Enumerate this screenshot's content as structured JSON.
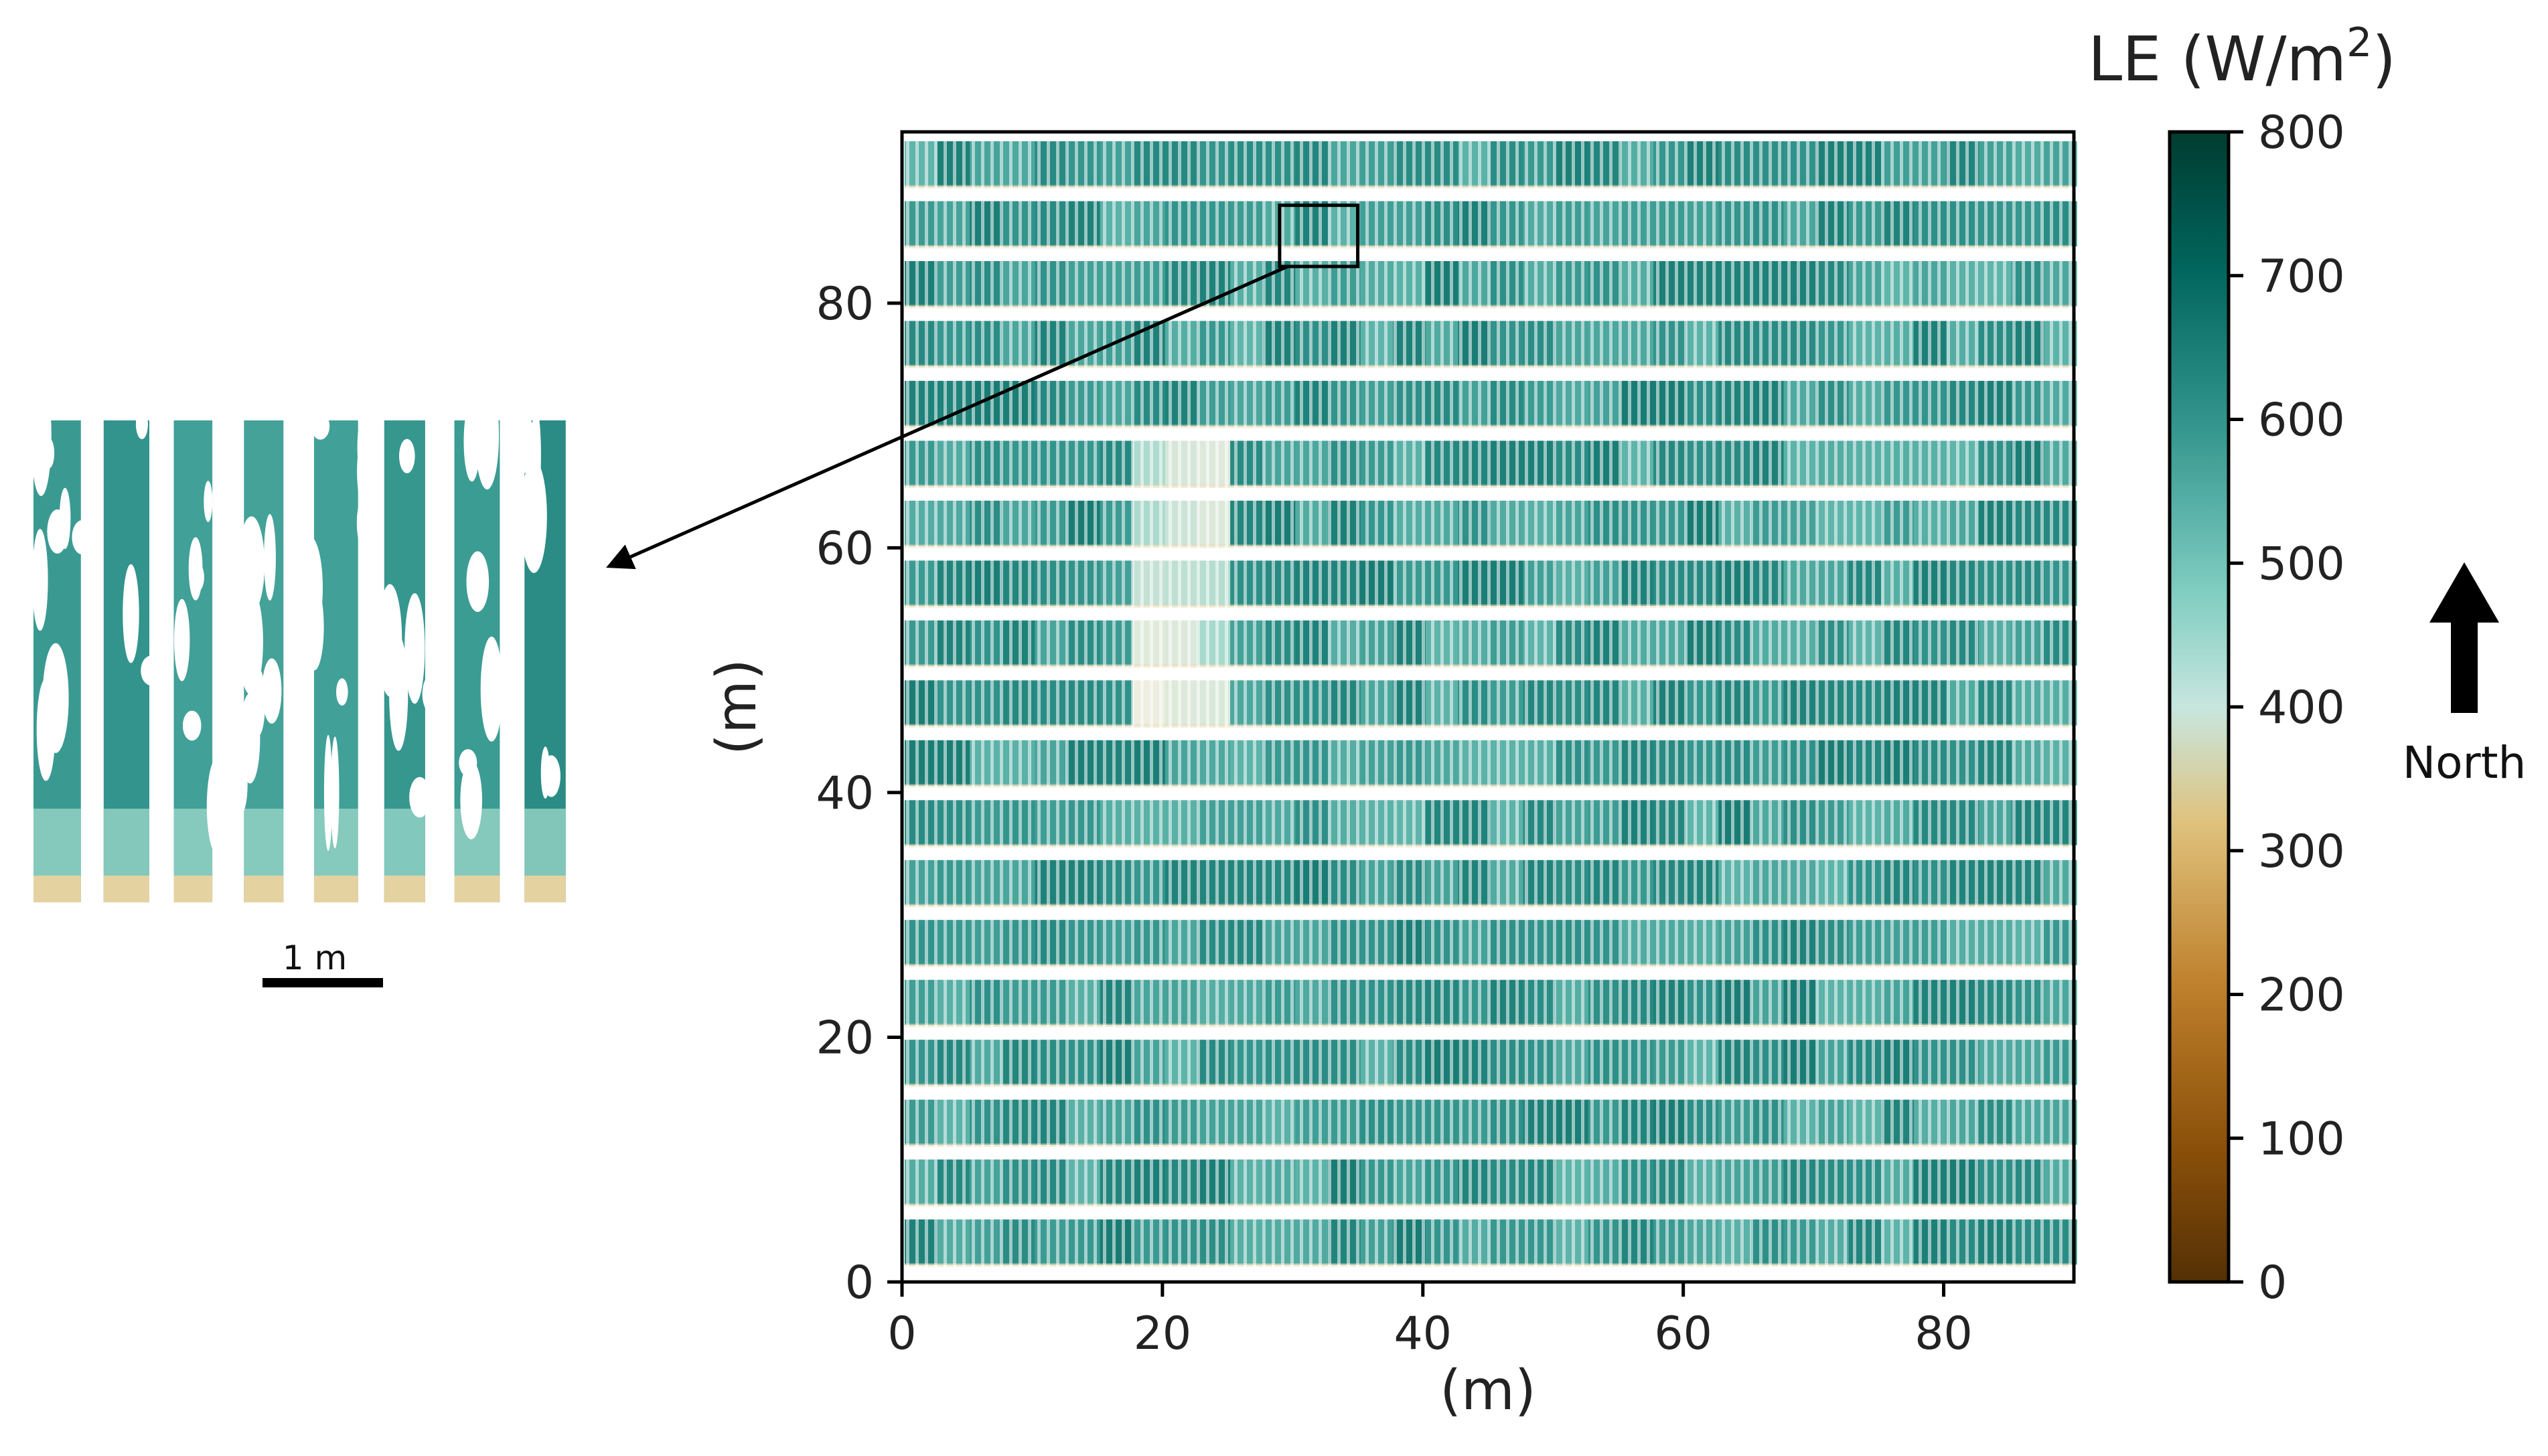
{
  "chart_data": {
    "type": "heatmap",
    "xlabel": "(m)",
    "ylabel": "(m)",
    "xlim": [
      0,
      90
    ],
    "ylim": [
      0,
      94
    ],
    "x_ticks": [
      0,
      20,
      40,
      60,
      80
    ],
    "y_ticks": [
      0,
      20,
      40,
      60,
      80
    ],
    "x_tick_labels": [
      "0",
      "20",
      "40",
      "60",
      "80"
    ],
    "y_tick_labels": [
      "0",
      "20",
      "40",
      "60",
      "80"
    ],
    "colorbar": {
      "title": "LE (W/m",
      "title_superscript": "2",
      "title_close": ")",
      "min": 0,
      "max": 800,
      "ticks": [
        0,
        100,
        200,
        300,
        400,
        500,
        600,
        700,
        800
      ],
      "tick_labels": [
        "0",
        "100",
        "200",
        "300",
        "400",
        "500",
        "600",
        "700",
        "800"
      ],
      "colors": [
        "#543005",
        "#8c510a",
        "#bf812d",
        "#dfc27d",
        "#f1efe0",
        "#80cdc1",
        "#35978f",
        "#01665e",
        "#003c30"
      ]
    },
    "zoom_box": {
      "x_range": [
        29,
        35
      ],
      "y_range": [
        83,
        88
      ]
    },
    "inset_scale_label": "1 m",
    "north_label": "North",
    "grid": false
  }
}
